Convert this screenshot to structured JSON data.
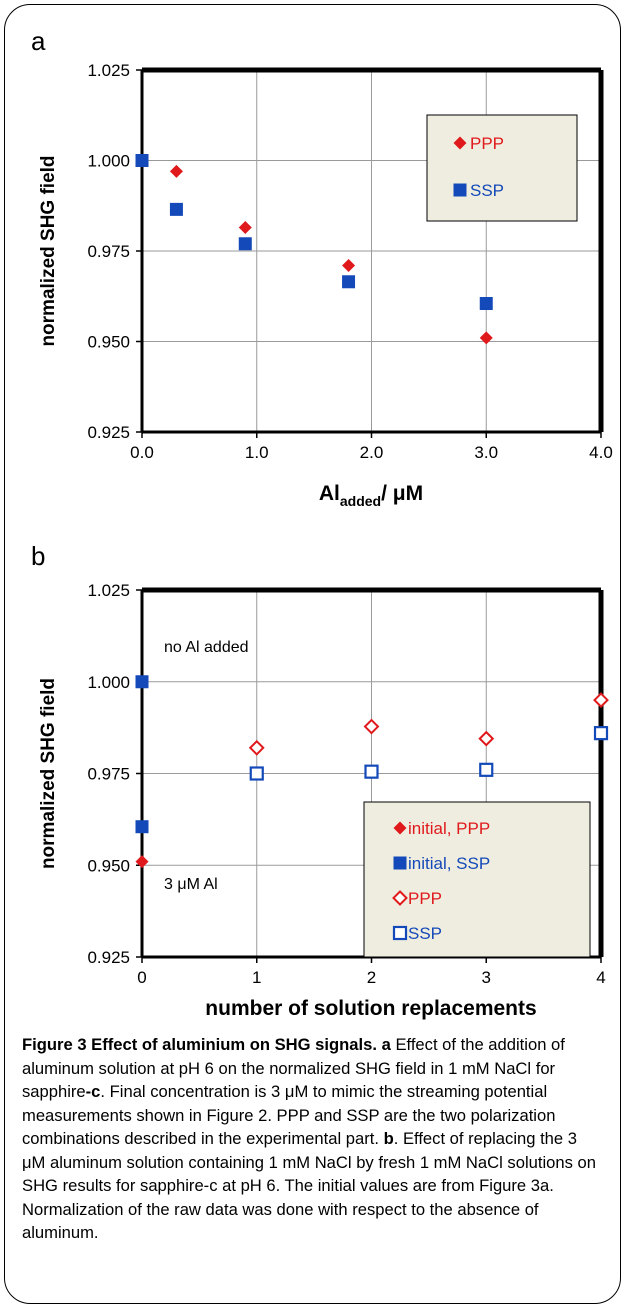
{
  "colors": {
    "red": "#e0191c",
    "blue": "#1349b8",
    "legend_fill": "#efede0",
    "grid": "#9a9a9a"
  },
  "chart_data": [
    {
      "type": "scatter",
      "panel_label": "a",
      "ylabel": "normalized SHG field",
      "xlabel_main": "Al",
      "xlabel_sub": "added",
      "xlabel_tail": "/ μM",
      "xlim": [
        0.0,
        4.0
      ],
      "ylim": [
        0.925,
        1.025
      ],
      "xticks": [
        "0.0",
        "1.0",
        "2.0",
        "3.0",
        "4.0"
      ],
      "xtick_values": [
        0,
        1,
        2,
        3,
        4
      ],
      "yticks": [
        "0.925",
        "0.950",
        "0.975",
        "1.000",
        "1.025"
      ],
      "ytick_values": [
        0.925,
        0.95,
        0.975,
        1.0,
        1.025
      ],
      "grid": true,
      "legend_position": "top-right",
      "series": [
        {
          "name": "PPP",
          "marker": "diamond-filled",
          "color": "#e0191c",
          "x": [
            0.3,
            0.9,
            1.8,
            3.0
          ],
          "y": [
            0.997,
            0.9815,
            0.971,
            0.951
          ]
        },
        {
          "name": "SSP",
          "marker": "square-filled",
          "color": "#1349b8",
          "x": [
            0.0,
            0.3,
            0.9,
            1.8,
            3.0
          ],
          "y": [
            1.0,
            0.9865,
            0.977,
            0.9665,
            0.9605
          ]
        }
      ]
    },
    {
      "type": "scatter",
      "panel_label": "b",
      "ylabel": "normalized SHG field",
      "xlabel": "number of solution replacements",
      "xlim": [
        0,
        4
      ],
      "ylim": [
        0.925,
        1.025
      ],
      "xticks": [
        "0",
        "1",
        "2",
        "3",
        "4"
      ],
      "xtick_values": [
        0,
        1,
        2,
        3,
        4
      ],
      "yticks": [
        "0.925",
        "0.950",
        "0.975",
        "1.000",
        "1.025"
      ],
      "ytick_values": [
        0.925,
        0.95,
        0.975,
        1.0,
        1.025
      ],
      "grid": true,
      "legend_position": "bottom-right",
      "annotations": [
        "no Al added",
        "3 μM Al"
      ],
      "series": [
        {
          "name": "initial, PPP",
          "marker": "diamond-filled",
          "color": "#e0191c",
          "x": [
            0
          ],
          "y": [
            0.951
          ]
        },
        {
          "name": "initial, SSP",
          "marker": "square-filled",
          "color": "#1349b8",
          "x": [
            0,
            0
          ],
          "y": [
            1.0,
            0.9605
          ]
        },
        {
          "name": "PPP",
          "marker": "diamond-open",
          "color": "#e0191c",
          "x": [
            1,
            2,
            3,
            4
          ],
          "y": [
            0.982,
            0.9878,
            0.9845,
            0.995
          ]
        },
        {
          "name": "SSP",
          "marker": "square-open",
          "color": "#1349b8",
          "x": [
            1,
            2,
            3,
            4
          ],
          "y": [
            0.975,
            0.9755,
            0.976,
            0.986
          ]
        }
      ]
    }
  ],
  "caption": {
    "title": "Figure 3 Effect of aluminium on SHG signals.",
    "a_label": "a",
    "a_text_1": " Effect of the addition of aluminum solution at pH 6 on the normalized SHG field in 1 mM NaCl for sapphire",
    "a_c": "-c",
    "a_text_2": ". Final concentration is 3 μM to mimic the streaming potential measurements shown in Figure 2. PPP and SSP are the two polarization combinations described in the experimental part. ",
    "b_label": "b",
    "b_text": ". Effect of replacing the 3 μM aluminum solution containing 1 mM NaCl by fresh 1 mM NaCl solutions on SHG results for sapphire-c at pH 6. The initial values are from Figure 3a. Normalization of the raw data was done with respect to the absence of aluminum."
  }
}
